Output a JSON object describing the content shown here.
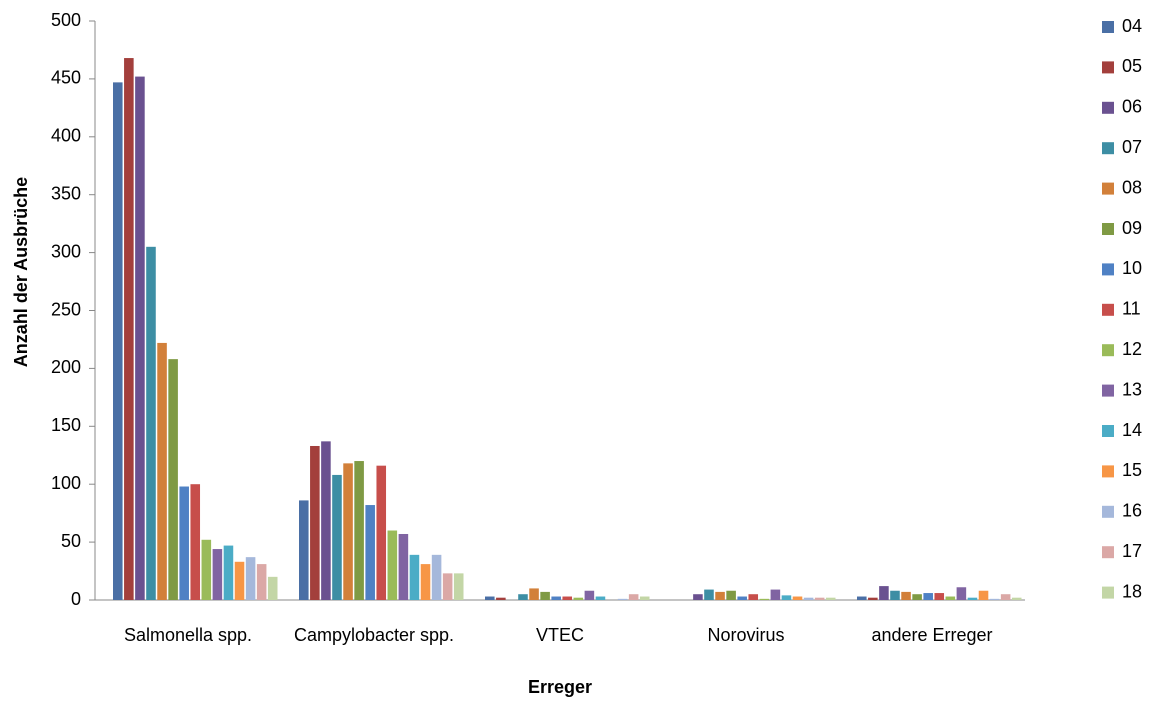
{
  "chart_data": {
    "type": "bar",
    "x_label": "Erreger",
    "y_label": "Anzahl der Ausbrüche",
    "categories": [
      "Salmonella spp.",
      "Campylobacter spp.",
      "VTEC",
      "Norovirus",
      "andere Erreger"
    ],
    "ylim": [
      0,
      500
    ],
    "yticks": [
      0,
      50,
      100,
      150,
      200,
      250,
      300,
      350,
      400,
      450,
      500
    ],
    "grid": false,
    "legend": "right",
    "series": [
      {
        "name": "04",
        "color": "#4a6fa5",
        "values": [
          447,
          86,
          3,
          0,
          3
        ]
      },
      {
        "name": "05",
        "color": "#a33f3c",
        "values": [
          468,
          133,
          2,
          0,
          2
        ]
      },
      {
        "name": "06",
        "color": "#6a5190",
        "values": [
          452,
          137,
          0,
          5,
          12
        ]
      },
      {
        "name": "07",
        "color": "#3d8ea4",
        "values": [
          305,
          108,
          5,
          9,
          8
        ]
      },
      {
        "name": "08",
        "color": "#d2803a",
        "values": [
          222,
          118,
          10,
          7,
          7
        ]
      },
      {
        "name": "09",
        "color": "#7f9a44",
        "values": [
          208,
          120,
          7,
          8,
          5
        ]
      },
      {
        "name": "10",
        "color": "#4f81c4",
        "values": [
          98,
          82,
          3,
          3,
          6
        ]
      },
      {
        "name": "11",
        "color": "#c74e4b",
        "values": [
          100,
          116,
          3,
          5,
          6
        ]
      },
      {
        "name": "12",
        "color": "#9abb59",
        "values": [
          52,
          60,
          2,
          1,
          3
        ]
      },
      {
        "name": "13",
        "color": "#8064a2",
        "values": [
          44,
          57,
          8,
          9,
          11
        ]
      },
      {
        "name": "14",
        "color": "#4bacc6",
        "values": [
          47,
          39,
          3,
          4,
          2
        ]
      },
      {
        "name": "15",
        "color": "#f79646",
        "values": [
          33,
          31,
          0,
          3,
          8
        ]
      },
      {
        "name": "16",
        "color": "#a5b8db",
        "values": [
          37,
          39,
          1,
          2,
          1
        ]
      },
      {
        "name": "17",
        "color": "#dba8a6",
        "values": [
          31,
          23,
          5,
          2,
          5
        ]
      },
      {
        "name": "18",
        "color": "#c3d6a6",
        "values": [
          20,
          23,
          3,
          2,
          2
        ]
      }
    ]
  }
}
